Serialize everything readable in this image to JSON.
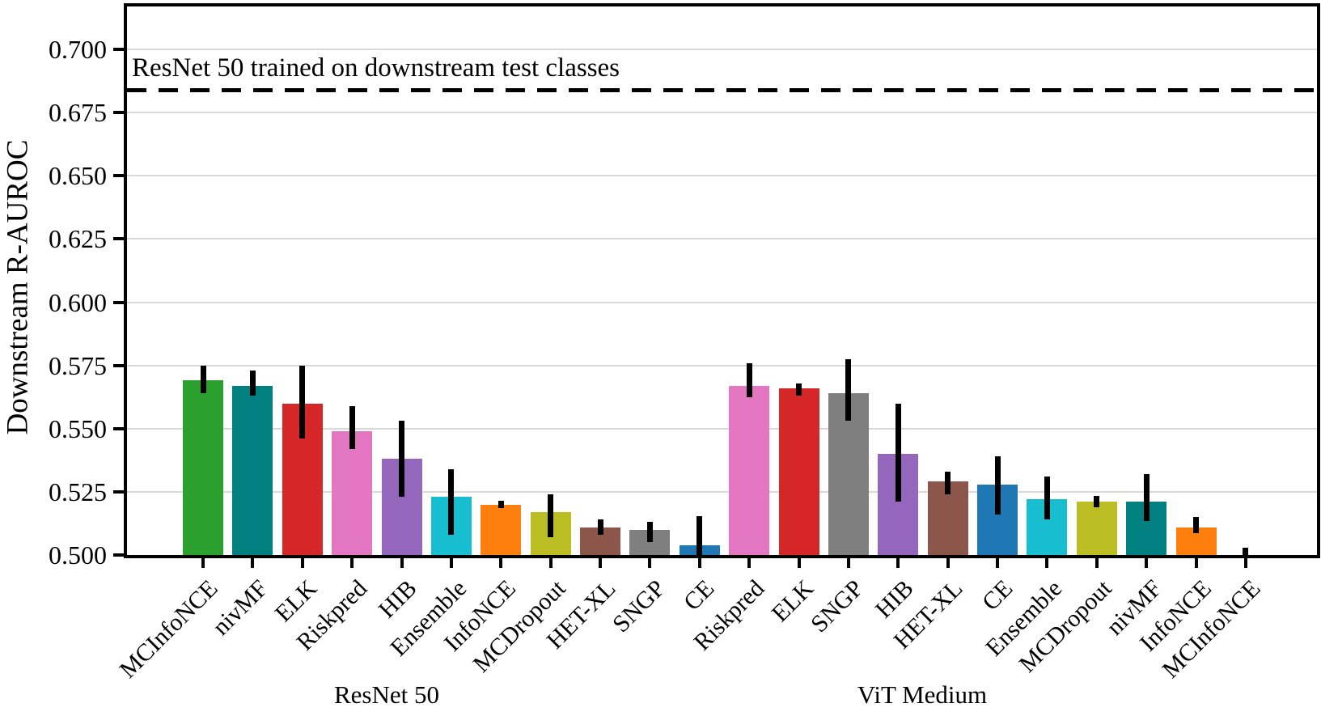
{
  "chart_data": {
    "type": "bar",
    "title": "",
    "ylabel": "Downstream R-AUROC",
    "ylim": [
      0.5,
      0.717
    ],
    "yticks": [
      0.5,
      0.525,
      0.55,
      0.575,
      0.6,
      0.625,
      0.65,
      0.675,
      0.7
    ],
    "gridline_values": [
      0.525,
      0.55,
      0.575,
      0.6,
      0.625,
      0.65,
      0.675,
      0.7
    ],
    "grid": "horizontal",
    "legend": "none",
    "reference_line": {
      "value": 0.684,
      "label": "ResNet 50 trained on downstream test classes",
      "style": "dashed",
      "color": "#000000"
    },
    "groups": [
      "ResNet 50",
      "ViT Medium"
    ],
    "bars": [
      {
        "group": "ResNet 50",
        "method": "MCInfoNCE",
        "value": 0.569,
        "err_lo": 0.564,
        "err_hi": 0.575,
        "color": "#2ca02c"
      },
      {
        "group": "ResNet 50",
        "method": "nivMF",
        "value": 0.567,
        "err_lo": 0.563,
        "err_hi": 0.573,
        "color": "#008080"
      },
      {
        "group": "ResNet 50",
        "method": "ELK",
        "value": 0.56,
        "err_lo": 0.546,
        "err_hi": 0.575,
        "color": "#d62728"
      },
      {
        "group": "ResNet 50",
        "method": "Riskpred",
        "value": 0.549,
        "err_lo": 0.542,
        "err_hi": 0.559,
        "color": "#e377c2"
      },
      {
        "group": "ResNet 50",
        "method": "HIB",
        "value": 0.538,
        "err_lo": 0.523,
        "err_hi": 0.553,
        "color": "#9467bd"
      },
      {
        "group": "ResNet 50",
        "method": "Ensemble",
        "value": 0.523,
        "err_lo": 0.508,
        "err_hi": 0.534,
        "color": "#17becf"
      },
      {
        "group": "ResNet 50",
        "method": "InfoNCE",
        "value": 0.52,
        "err_lo": 0.5185,
        "err_hi": 0.5215,
        "color": "#ff7f0e"
      },
      {
        "group": "ResNet 50",
        "method": "MCDropout",
        "value": 0.517,
        "err_lo": 0.507,
        "err_hi": 0.524,
        "color": "#bcbd22"
      },
      {
        "group": "ResNet 50",
        "method": "HET-XL",
        "value": 0.511,
        "err_lo": 0.508,
        "err_hi": 0.514,
        "color": "#8c564b"
      },
      {
        "group": "ResNet 50",
        "method": "SNGP",
        "value": 0.51,
        "err_lo": 0.505,
        "err_hi": 0.513,
        "color": "#7f7f7f"
      },
      {
        "group": "ResNet 50",
        "method": "CE",
        "value": 0.504,
        "err_lo": 0.499,
        "err_hi": 0.5155,
        "color": "#1f77b4"
      },
      {
        "group": "ViT Medium",
        "method": "Riskpred",
        "value": 0.567,
        "err_lo": 0.5625,
        "err_hi": 0.576,
        "color": "#e377c2"
      },
      {
        "group": "ViT Medium",
        "method": "ELK",
        "value": 0.566,
        "err_lo": 0.563,
        "err_hi": 0.568,
        "color": "#d62728"
      },
      {
        "group": "ViT Medium",
        "method": "SNGP",
        "value": 0.564,
        "err_lo": 0.553,
        "err_hi": 0.5775,
        "color": "#7f7f7f"
      },
      {
        "group": "ViT Medium",
        "method": "HIB",
        "value": 0.54,
        "err_lo": 0.521,
        "err_hi": 0.56,
        "color": "#9467bd"
      },
      {
        "group": "ViT Medium",
        "method": "HET-XL",
        "value": 0.529,
        "err_lo": 0.524,
        "err_hi": 0.533,
        "color": "#8c564b"
      },
      {
        "group": "ViT Medium",
        "method": "CE",
        "value": 0.528,
        "err_lo": 0.516,
        "err_hi": 0.539,
        "color": "#1f77b4"
      },
      {
        "group": "ViT Medium",
        "method": "Ensemble",
        "value": 0.522,
        "err_lo": 0.514,
        "err_hi": 0.531,
        "color": "#17becf"
      },
      {
        "group": "ViT Medium",
        "method": "MCDropout",
        "value": 0.521,
        "err_lo": 0.519,
        "err_hi": 0.5235,
        "color": "#bcbd22"
      },
      {
        "group": "ViT Medium",
        "method": "nivMF",
        "value": 0.521,
        "err_lo": 0.5135,
        "err_hi": 0.532,
        "color": "#008080"
      },
      {
        "group": "ViT Medium",
        "method": "InfoNCE",
        "value": 0.511,
        "err_lo": 0.5085,
        "err_hi": 0.515,
        "color": "#ff7f0e"
      },
      {
        "group": "ViT Medium",
        "method": "MCInfoNCE",
        "value": 0.5,
        "err_lo": 0.5,
        "err_hi": 0.503,
        "color": "#2ca02c"
      }
    ]
  }
}
